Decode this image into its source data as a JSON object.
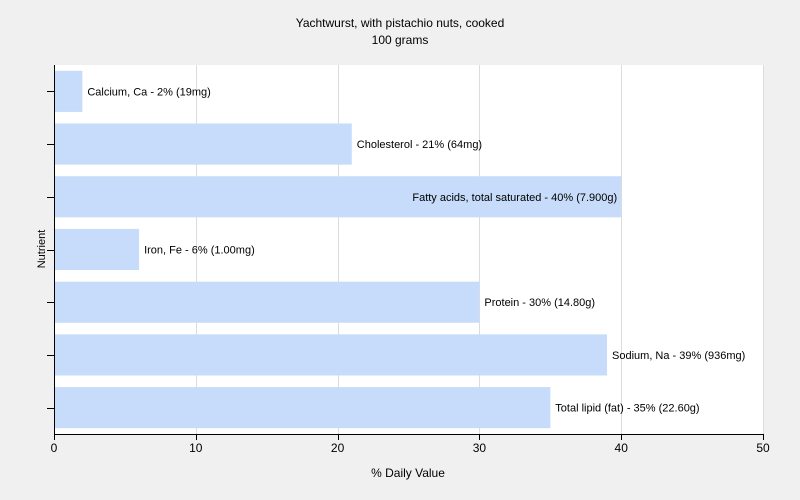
{
  "chart_data": {
    "type": "bar",
    "orientation": "horizontal",
    "title": "Yachtwurst, with pistachio nuts, cooked",
    "subtitle": "100 grams",
    "xlabel": "% Daily Value",
    "ylabel": "Nutrient",
    "xlim": [
      0,
      50
    ],
    "xticks": [
      0,
      10,
      20,
      30,
      40,
      50
    ],
    "grid": true,
    "legend": "none",
    "bar_color": "#c6dcfa",
    "categories": [
      "Calcium, Ca",
      "Cholesterol",
      "Fatty acids, total saturated",
      "Iron, Fe",
      "Protein",
      "Sodium, Na",
      "Total lipid (fat)"
    ],
    "values": [
      2,
      21,
      40,
      6,
      30,
      39,
      35
    ],
    "data_labels": [
      "Calcium, Ca - 2% (19mg)",
      "Cholesterol - 21% (64mg)",
      "Fatty acids, total saturated - 40% (7.900g)",
      "Iron, Fe - 6% (1.00mg)",
      "Protein - 30% (14.80g)",
      "Sodium, Na - 39% (936mg)",
      "Total lipid (fat) - 35% (22.60g)"
    ]
  }
}
